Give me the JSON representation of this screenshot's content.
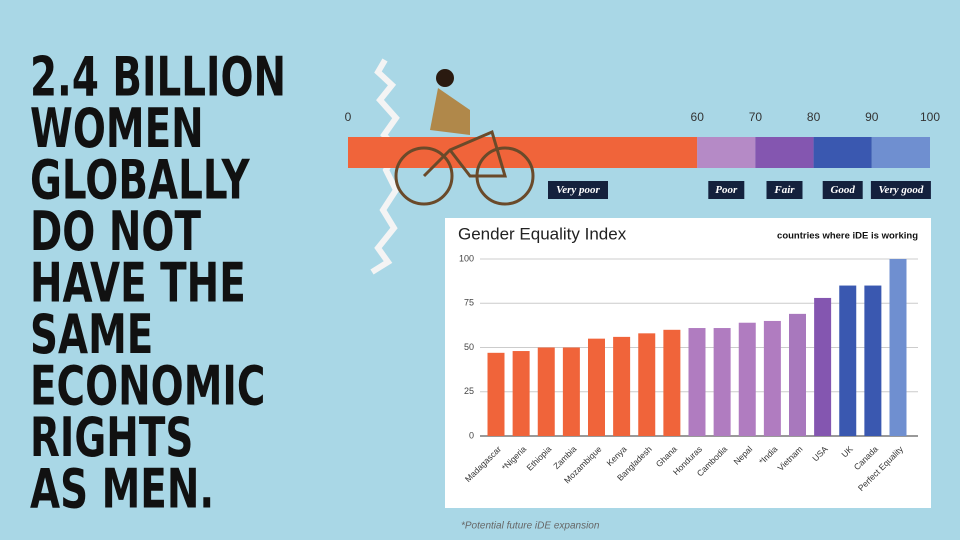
{
  "headline": [
    "2.4 BILLION",
    "WOMEN",
    "GLOBALLY",
    "DO NOT",
    "HAVE THE",
    "SAME",
    "ECONOMIC",
    "RIGHTS",
    "AS MEN."
  ],
  "scale": {
    "ticks": [
      0,
      60,
      70,
      80,
      90,
      100
    ],
    "segments": [
      {
        "label": "Very poor",
        "from": 0,
        "to": 60,
        "color": "#f0643a"
      },
      {
        "label": "Poor",
        "from": 60,
        "to": 70,
        "color": "#b58ac6"
      },
      {
        "label": "Fair",
        "from": 70,
        "to": 80,
        "color": "#8456b0"
      },
      {
        "label": "Good",
        "from": 80,
        "to": 90,
        "color": "#3a58b0"
      },
      {
        "label": "Very good",
        "from": 90,
        "to": 100,
        "color": "#6f8fd0"
      }
    ]
  },
  "chart_data": {
    "type": "bar",
    "title": "Gender Equality Index",
    "subtitle": "countries where iDE is working",
    "categories": [
      "Madagascar",
      "*Nigeria",
      "Ethiopia",
      "Zambia",
      "Mozambique",
      "Kenya",
      "Bangladesh",
      "Ghana",
      "Honduras",
      "Cambodia",
      "Nepal",
      "*India",
      "Vietnam",
      "USA",
      "UK",
      "Canada",
      "Perfect Equality"
    ],
    "values": [
      47,
      48,
      50,
      50,
      55,
      56,
      58,
      60,
      61,
      61,
      64,
      65,
      69,
      78,
      85,
      85,
      100
    ],
    "colors": [
      "#f0643a",
      "#f0643a",
      "#f0643a",
      "#f0643a",
      "#f0643a",
      "#f0643a",
      "#f0643a",
      "#f0643a",
      "#b07cc0",
      "#b07cc0",
      "#b07cc0",
      "#b07cc0",
      "#a878bd",
      "#8456b0",
      "#3a58b0",
      "#3a58b0",
      "#6f8fd0"
    ],
    "ylim": [
      0,
      100
    ],
    "yticks": [
      0,
      25,
      50,
      75,
      100
    ],
    "grid": true
  },
  "footnote": "*Potential future iDE expansion"
}
